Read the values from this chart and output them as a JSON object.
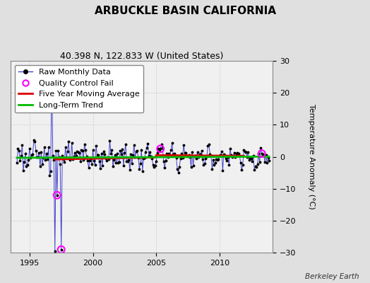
{
  "title": "ARBUCKLE BASIN CALIFORNIA",
  "subtitle": "40.398 N, 122.833 W (United States)",
  "ylabel": "Temperature Anomaly (°C)",
  "attribution": "Berkeley Earth",
  "xlim": [
    1993.5,
    2014.2
  ],
  "ylim": [
    -30,
    30
  ],
  "yticks": [
    -30,
    -20,
    -10,
    0,
    10,
    20,
    30
  ],
  "xticks": [
    1995,
    2000,
    2005,
    2010
  ],
  "background_color": "#e0e0e0",
  "plot_bg_color": "#f0f0f0",
  "raw_line_color": "#4444cc",
  "raw_marker_color": "#000000",
  "qc_marker_color": "#ff00ff",
  "moving_avg_color": "#dd0000",
  "trend_color": "#00bb00",
  "grid_color": "#cccccc",
  "legend_fontsize": 8,
  "axis_fontsize": 8,
  "title_fontsize": 11
}
